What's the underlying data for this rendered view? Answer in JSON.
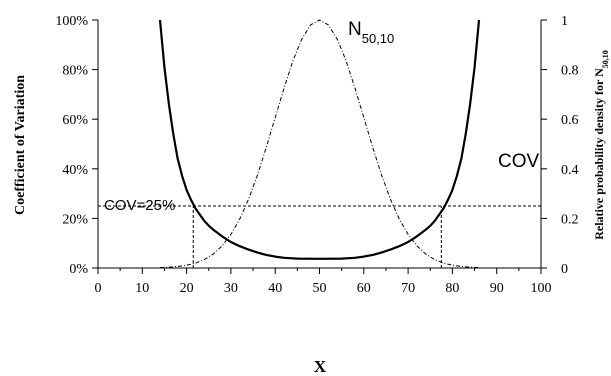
{
  "chart_data": {
    "type": "line",
    "xlabel": "X",
    "ylabel_left": "Coefficient of Variation",
    "ylabel_right_main": "Relative probability density for N",
    "ylabel_right_sub": "50,10",
    "x_range": [
      0,
      100
    ],
    "y_left_range": [
      0,
      100
    ],
    "y_right_range": [
      0,
      1
    ],
    "x_ticks": [
      "0",
      "10",
      "20",
      "30",
      "40",
      "50",
      "60",
      "70",
      "80",
      "90",
      "100"
    ],
    "y_left_ticks": [
      "0%",
      "20%",
      "40%",
      "60%",
      "80%",
      "100%"
    ],
    "y_right_ticks": [
      "0",
      "0.2",
      "0.4",
      "0.6",
      "0.8",
      "1"
    ],
    "series": [
      {
        "name": "COV",
        "axis": "left",
        "style": "solid",
        "x": [
          14,
          15,
          16,
          17,
          18,
          19,
          20,
          21,
          22,
          23,
          24,
          25,
          26,
          28,
          30,
          32,
          34,
          36,
          38,
          40,
          42,
          45,
          50,
          55,
          58,
          60,
          62,
          64,
          66,
          68,
          70,
          72,
          74,
          75,
          76,
          77,
          78,
          79,
          80,
          81,
          82,
          83,
          84,
          85,
          86
        ],
        "y": [
          100,
          81,
          66,
          54,
          44,
          37,
          31.5,
          27.5,
          24,
          21.5,
          19,
          17,
          15.5,
          12.8,
          10.5,
          8.8,
          7.4,
          6.2,
          5.3,
          4.6,
          4.1,
          3.8,
          3.7,
          3.8,
          4.1,
          4.6,
          5.3,
          6.2,
          7.4,
          8.8,
          10.5,
          12.8,
          15.5,
          17,
          19,
          21.5,
          24,
          27.5,
          31.5,
          37,
          44,
          54,
          66,
          81,
          100
        ]
      },
      {
        "name": "N50,10",
        "axis": "right",
        "style": "dash-dot",
        "x": [
          14,
          16,
          18,
          20,
          22,
          24,
          26,
          28,
          30,
          32,
          34,
          36,
          38,
          40,
          42,
          44,
          46,
          48,
          50,
          52,
          54,
          56,
          58,
          60,
          62,
          64,
          66,
          68,
          70,
          72,
          74,
          76,
          78,
          80,
          82,
          84,
          86
        ],
        "y": [
          0.0015,
          0.0031,
          0.0063,
          0.0111,
          0.0198,
          0.034,
          0.0561,
          0.0889,
          0.1353,
          0.1979,
          0.278,
          0.3753,
          0.4868,
          0.6065,
          0.7261,
          0.8353,
          0.9231,
          0.9802,
          1.0,
          0.9802,
          0.9231,
          0.8353,
          0.7261,
          0.6065,
          0.4868,
          0.3753,
          0.278,
          0.1979,
          0.1353,
          0.0889,
          0.0561,
          0.034,
          0.0198,
          0.0111,
          0.0063,
          0.0031,
          0.0015
        ]
      },
      {
        "name": "COV=25%",
        "axis": "left",
        "style": "dashed",
        "x": [
          0,
          100
        ],
        "y": [
          25,
          25
        ]
      }
    ],
    "reference_lines": [
      {
        "x": 21.5,
        "y_from": 0,
        "y_to": 25,
        "style": "dashed"
      },
      {
        "x": 77.5,
        "y_from": 0,
        "y_to": 25,
        "style": "dashed"
      }
    ],
    "annotations": {
      "cov_label": "COV",
      "n_label_main": "N",
      "n_label_sub": "50,10",
      "threshold_label": "COV=25%"
    },
    "grid": false
  }
}
